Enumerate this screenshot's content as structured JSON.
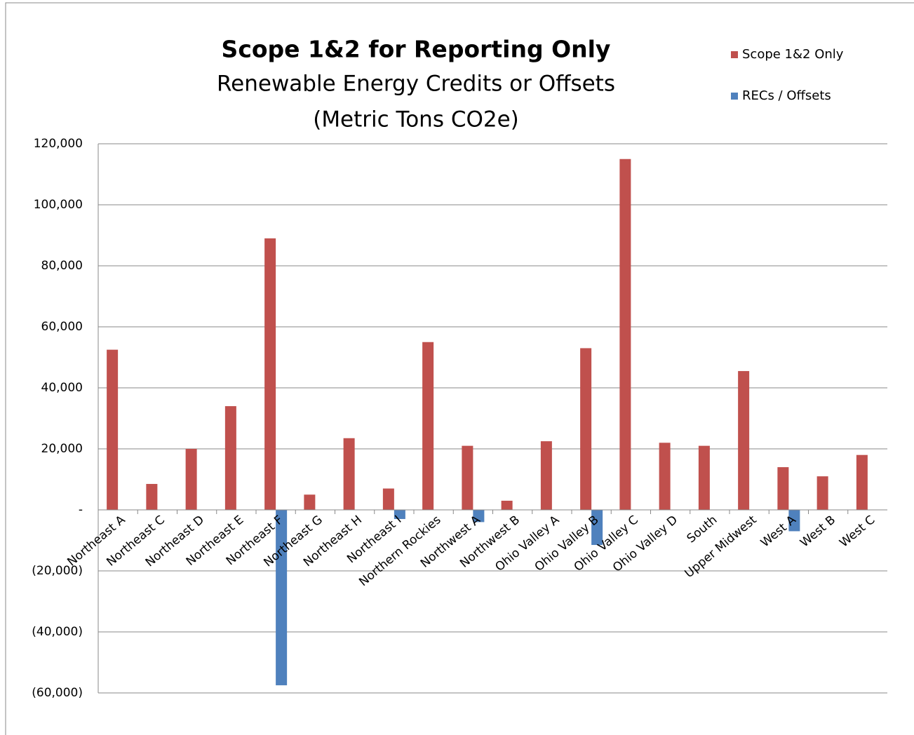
{
  "chart_data": {
    "type": "bar",
    "title": "Scope 1&2 for Reporting Only",
    "subtitle": [
      "Renewable Energy Credits or Offsets",
      "(Metric Tons CO2e)"
    ],
    "categories": [
      "Northeast A",
      "Northeast C",
      "Northeast D",
      "Northeast E",
      "Northeast F",
      "Northeast G",
      "Northeast H",
      "Northeast I",
      "Northern Rockies",
      "Northwest A",
      "Northwest B",
      "Ohio Valley A",
      "Ohio Valley B",
      "Ohio Valley C",
      "Ohio Valley D",
      "South",
      "Upper Midwest",
      "West A",
      "West B",
      "West C"
    ],
    "series": [
      {
        "name": "Scope 1&2 Only",
        "color": "#c0504d",
        "values": [
          52500,
          8500,
          20000,
          34000,
          89000,
          5000,
          23500,
          7000,
          55000,
          21000,
          3000,
          22500,
          53000,
          115000,
          22000,
          21000,
          45500,
          14000,
          11000,
          18000
        ]
      },
      {
        "name": "RECs / Offsets",
        "color": "#4f81bd",
        "values": [
          0,
          0,
          0,
          0,
          -57500,
          0,
          0,
          -3000,
          0,
          -4000,
          0,
          0,
          -11500,
          0,
          0,
          0,
          0,
          -7000,
          0,
          0
        ]
      }
    ],
    "ylim": [
      -60000,
      120000
    ],
    "yticks": [
      {
        "value": -60000,
        "label": "(60,000)"
      },
      {
        "value": -40000,
        "label": "(40,000)"
      },
      {
        "value": -20000,
        "label": "(20,000)"
      },
      {
        "value": 0,
        "label": "-"
      },
      {
        "value": 20000,
        "label": "20,000"
      },
      {
        "value": 40000,
        "label": "40,000"
      },
      {
        "value": 60000,
        "label": "60,000"
      },
      {
        "value": 80000,
        "label": "80,000"
      },
      {
        "value": 100000,
        "label": "100,000"
      },
      {
        "value": 120000,
        "label": "120,000"
      }
    ],
    "grid": true,
    "legend": "top-right"
  }
}
